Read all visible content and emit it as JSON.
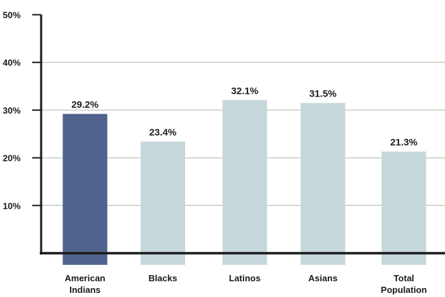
{
  "chart_data": {
    "type": "bar",
    "title": "",
    "xlabel": "",
    "ylabel": "",
    "ylim": [
      0,
      50
    ],
    "yticks": [
      10,
      20,
      30,
      40,
      50
    ],
    "ytick_labels": [
      "10%",
      "20%",
      "30%",
      "40%",
      "50%"
    ],
    "categories": [
      [
        "American",
        "Indians"
      ],
      [
        "Blacks"
      ],
      [
        "Latinos"
      ],
      [
        "Asians"
      ],
      [
        "Total",
        "Population"
      ]
    ],
    "values": [
      29.2,
      23.4,
      32.1,
      31.5,
      21.3
    ],
    "value_labels": [
      "29.2%",
      "23.4%",
      "32.1%",
      "31.5%",
      "21.3%"
    ],
    "grid": true,
    "colors": {
      "highlight": "#4f638c",
      "default": "#c6d7dc",
      "gridline": "#c9cdc4",
      "axis": "#1a1a1a"
    }
  }
}
